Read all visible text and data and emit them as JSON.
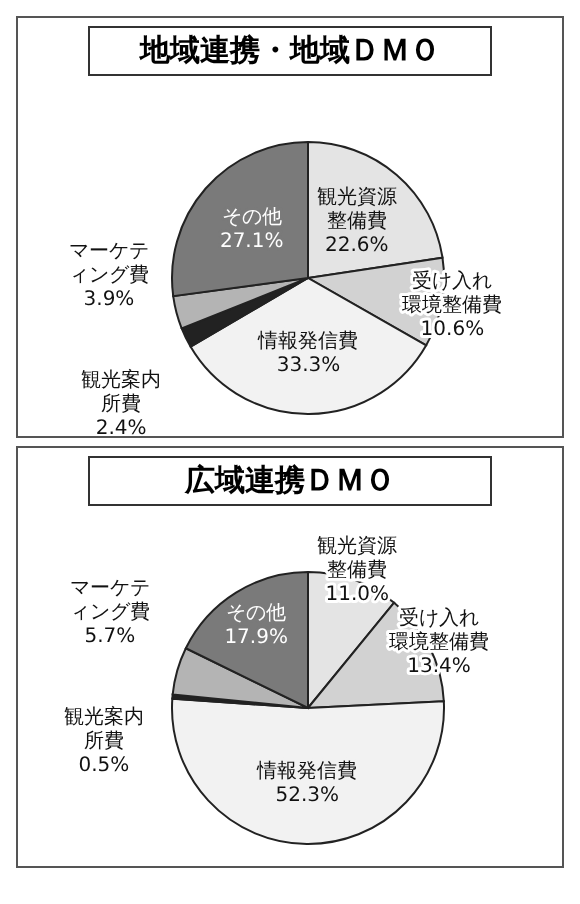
{
  "chart_data": [
    {
      "type": "pie",
      "title": "地域連携・地域ＤＭＯ",
      "categories": [
        "観光資源整備費",
        "受け入れ環境整備費",
        "情報発信費",
        "観光案内所費",
        "マーケティング費",
        "その他"
      ],
      "values": [
        22.6,
        10.6,
        33.3,
        2.4,
        3.9,
        27.1
      ],
      "colors": [
        "#e4e4e4",
        "#d2d2d2",
        "#f2f2f2",
        "#222222",
        "#b4b4b4",
        "#7a7a7a"
      ],
      "value_labels": [
        "22.6%",
        "10.6%",
        "33.3%",
        "2.4%",
        "3.9%",
        "27.1%"
      ]
    },
    {
      "type": "pie",
      "title": "広域連携ＤＭＯ",
      "categories": [
        "観光資源整備費",
        "受け入れ環境整備費",
        "情報発信費",
        "観光案内所費",
        "マーケティング費",
        "その他"
      ],
      "values": [
        11.0,
        13.4,
        52.3,
        0.5,
        5.7,
        17.9
      ],
      "colors": [
        "#e4e4e4",
        "#d2d2d2",
        "#f2f2f2",
        "#222222",
        "#b4b4b4",
        "#7a7a7a"
      ],
      "value_labels": [
        "11.0%",
        "13.4%",
        "52.3%",
        "0.5%",
        "5.7%",
        "17.9%"
      ]
    }
  ]
}
